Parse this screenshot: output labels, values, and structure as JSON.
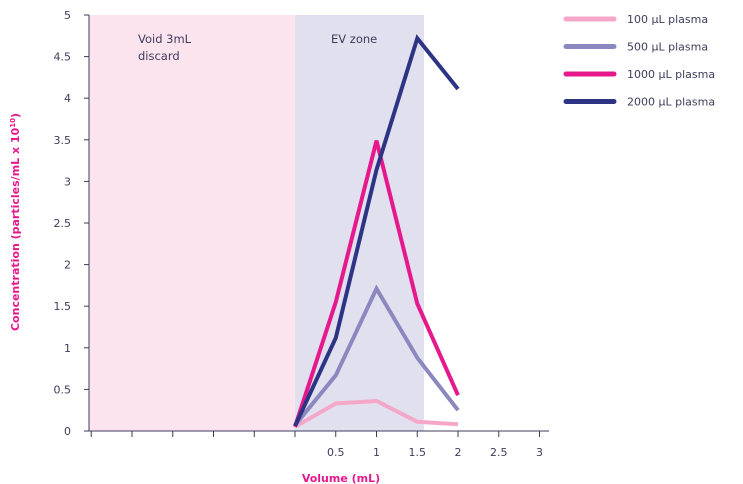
{
  "chart_data": {
    "type": "line",
    "title": "",
    "xlabel": "Volume (mL)",
    "ylabel": "Concentration (particles/mL x 10",
    "ylabel_exp": "10",
    "ylabel_close": ")",
    "ylim": [
      0,
      5
    ],
    "y_ticks": [
      "0",
      "0.5",
      "1",
      "1.5",
      "2",
      "2.5",
      "3",
      "3.5",
      "4",
      "4.5",
      "5"
    ],
    "x_tick_labels": [
      "0.5",
      "1",
      "1.5",
      "2",
      "2.5",
      "3"
    ],
    "zones": [
      {
        "label_lines": [
          "Void 3mL",
          "discard"
        ],
        "color": "#fce4ef"
      },
      {
        "label_lines": [
          "EV zone"
        ],
        "color": "#e0e0ef"
      }
    ],
    "x": [
      0,
      0.5,
      1,
      1.5,
      2
    ],
    "series": [
      {
        "name": "100 µL plasma",
        "color": "#f4a7c9",
        "values": [
          0.05,
          0.33,
          0.36,
          0.11,
          0.08
        ]
      },
      {
        "name": " 500 µL plasma",
        "color": "#8b88c0",
        "values": [
          0.07,
          0.67,
          1.71,
          0.88,
          0.25
        ]
      },
      {
        "name": "1000 µL plasma",
        "color": "#e6198c",
        "values": [
          0.05,
          1.55,
          3.49,
          1.53,
          0.43
        ]
      },
      {
        "name": "2000 µL plasma",
        "color": "#2e3484",
        "values": [
          0.06,
          1.12,
          3.14,
          4.72,
          4.11
        ]
      }
    ],
    "grid": false,
    "legend": "top-right"
  }
}
